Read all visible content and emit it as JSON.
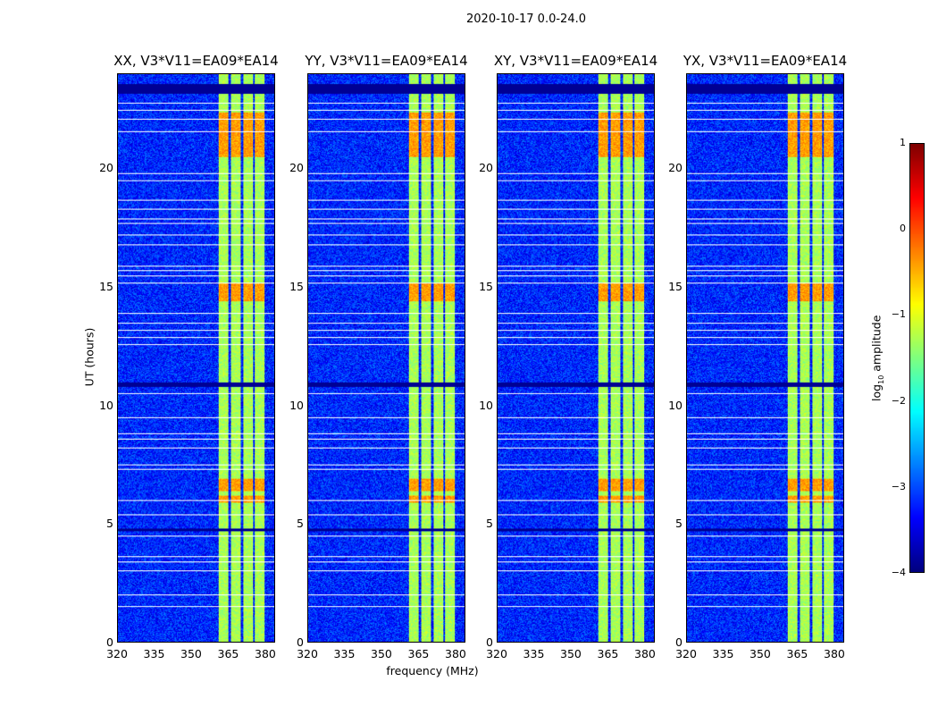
{
  "suptitle": "2020-10-17 0.0-24.0",
  "chart_data": {
    "type": "heatmap",
    "title": "2020-10-17 0.0-24.0",
    "xlabel": "frequency (MHz)",
    "ylabel": "UT (hours)",
    "xlim": [
      320,
      384
    ],
    "ylim": [
      0,
      24
    ],
    "xticks": [
      "320",
      "335",
      "350",
      "365",
      "380"
    ],
    "yticks": [
      "0",
      "5",
      "10",
      "15",
      "20"
    ],
    "panels": [
      {
        "title": "XX, V3*V11=EA09*EA14"
      },
      {
        "title": "YY, V3*V11=EA09*EA14"
      },
      {
        "title": "XY, V3*V11=EA09*EA14"
      },
      {
        "title": "YX, V3*V11=EA09*EA14"
      }
    ],
    "background_log_amplitude": -3.2,
    "bright_subbands_mhz": [
      [
        361,
        365
      ],
      [
        366,
        370
      ],
      [
        371,
        375
      ],
      [
        376,
        380
      ]
    ],
    "bright_subband_log_amplitude": -1.3,
    "flagged_hours": [
      0.0,
      1.5,
      2.0,
      3.0,
      3.4,
      3.6,
      4.5,
      5.4,
      6.0,
      7.3,
      7.5,
      8.2,
      8.6,
      8.8,
      9.5,
      10.5,
      12.6,
      12.9,
      13.2,
      13.5,
      13.9,
      15.2,
      15.5,
      15.7,
      15.9,
      16.8,
      17.2,
      17.7,
      17.9,
      18.3,
      18.7,
      19.5,
      19.8,
      21.6,
      22.1,
      22.5,
      22.8
    ],
    "low_amplitude_hours": [
      [
        4.7,
        4.8
      ],
      [
        10.8,
        11.0
      ],
      [
        23.2,
        23.6
      ]
    ],
    "high_amplitude_periods": [
      [
        5.9,
        6.2
      ],
      [
        6.4,
        6.9
      ],
      [
        20.5,
        22.4
      ],
      [
        14.4,
        15.2
      ]
    ],
    "colorbar": {
      "label": "log10 amplitude",
      "range": [
        -4,
        1
      ],
      "ticks": [
        "1",
        "0",
        "−1",
        "−2",
        "−3",
        "−4"
      ],
      "colormap": "jet"
    }
  }
}
